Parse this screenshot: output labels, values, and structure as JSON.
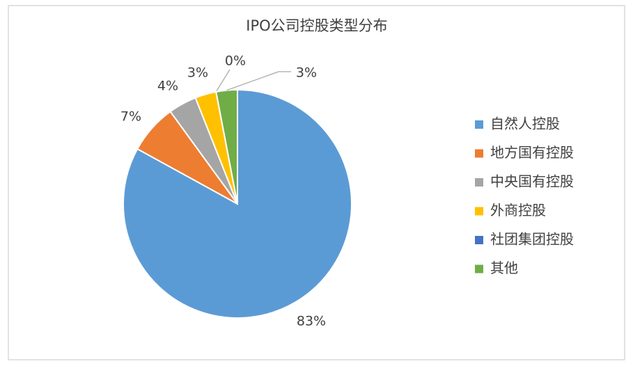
{
  "chart_data": {
    "type": "pie",
    "title": "IPO公司控股类型分布",
    "categories": [
      "自然人控股",
      "地方国有控股",
      "中央国有控股",
      "外商控股",
      "社团集团控股",
      "其他"
    ],
    "values": [
      83,
      7,
      4,
      3,
      0,
      3
    ],
    "value_labels": [
      "83%",
      "7%",
      "4%",
      "3%",
      "0%",
      "3%"
    ],
    "colors": [
      "#5b9bd5",
      "#ed7d31",
      "#a5a5a5",
      "#ffc000",
      "#4472c4",
      "#70ad47"
    ],
    "legend": "right"
  }
}
